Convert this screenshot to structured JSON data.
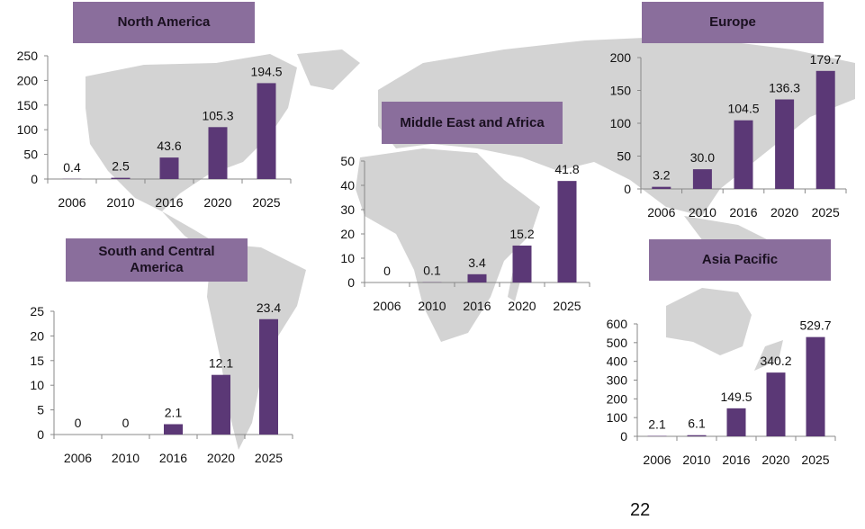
{
  "colors": {
    "bar": "#5B3876",
    "title_box": "#8A6E9C",
    "map": "#D3D3D3"
  },
  "page_number": "22",
  "chart_data": [
    {
      "type": "bar",
      "title": "North America",
      "categories": [
        "2006",
        "2010",
        "2016",
        "2020",
        "2025"
      ],
      "values": [
        0.4,
        2.5,
        43.6,
        105.3,
        194.5
      ],
      "labels": [
        "0.4",
        "2.5",
        "43.6",
        "105.3",
        "194.5"
      ],
      "ylim": [
        0,
        250
      ],
      "yticks": [
        0,
        50,
        100,
        150,
        200,
        250
      ],
      "grid": false
    },
    {
      "type": "bar",
      "title": "Europe",
      "categories": [
        "2006",
        "2010",
        "2016",
        "2020",
        "2025"
      ],
      "values": [
        3.2,
        30.0,
        104.5,
        136.3,
        179.7
      ],
      "labels": [
        "3.2",
        "30.0",
        "104.5",
        "136.3",
        "179.7"
      ],
      "ylim": [
        0,
        200
      ],
      "yticks": [
        0,
        50,
        100,
        150,
        200
      ],
      "grid": false
    },
    {
      "type": "bar",
      "title": "Middle East and Africa",
      "categories": [
        "2006",
        "2010",
        "2016",
        "2020",
        "2025"
      ],
      "values": [
        0,
        0.1,
        3.4,
        15.2,
        41.8
      ],
      "labels": [
        "0",
        "0.1",
        "3.4",
        "15.2",
        "41.8"
      ],
      "ylim": [
        0,
        50
      ],
      "yticks": [
        0,
        10,
        20,
        30,
        40,
        50
      ],
      "grid": false
    },
    {
      "type": "bar",
      "title": "South and Central America",
      "categories": [
        "2006",
        "2010",
        "2016",
        "2020",
        "2025"
      ],
      "values": [
        0,
        0,
        2.1,
        12.1,
        23.4
      ],
      "labels": [
        "0",
        "0",
        "2.1",
        "12.1",
        "23.4"
      ],
      "ylim": [
        0,
        25
      ],
      "yticks": [
        0,
        5,
        10,
        15,
        20,
        25
      ],
      "grid": false
    },
    {
      "type": "bar",
      "title": "Asia Pacific",
      "categories": [
        "2006",
        "2010",
        "2016",
        "2020",
        "2025"
      ],
      "values": [
        2.1,
        6.1,
        149.5,
        340.2,
        529.7
      ],
      "labels": [
        "2.1",
        "6.1",
        "149.5",
        "340.2",
        "529.7"
      ],
      "ylim": [
        0,
        600
      ],
      "yticks": [
        0,
        100,
        200,
        300,
        400,
        500,
        600
      ],
      "grid": false
    }
  ]
}
